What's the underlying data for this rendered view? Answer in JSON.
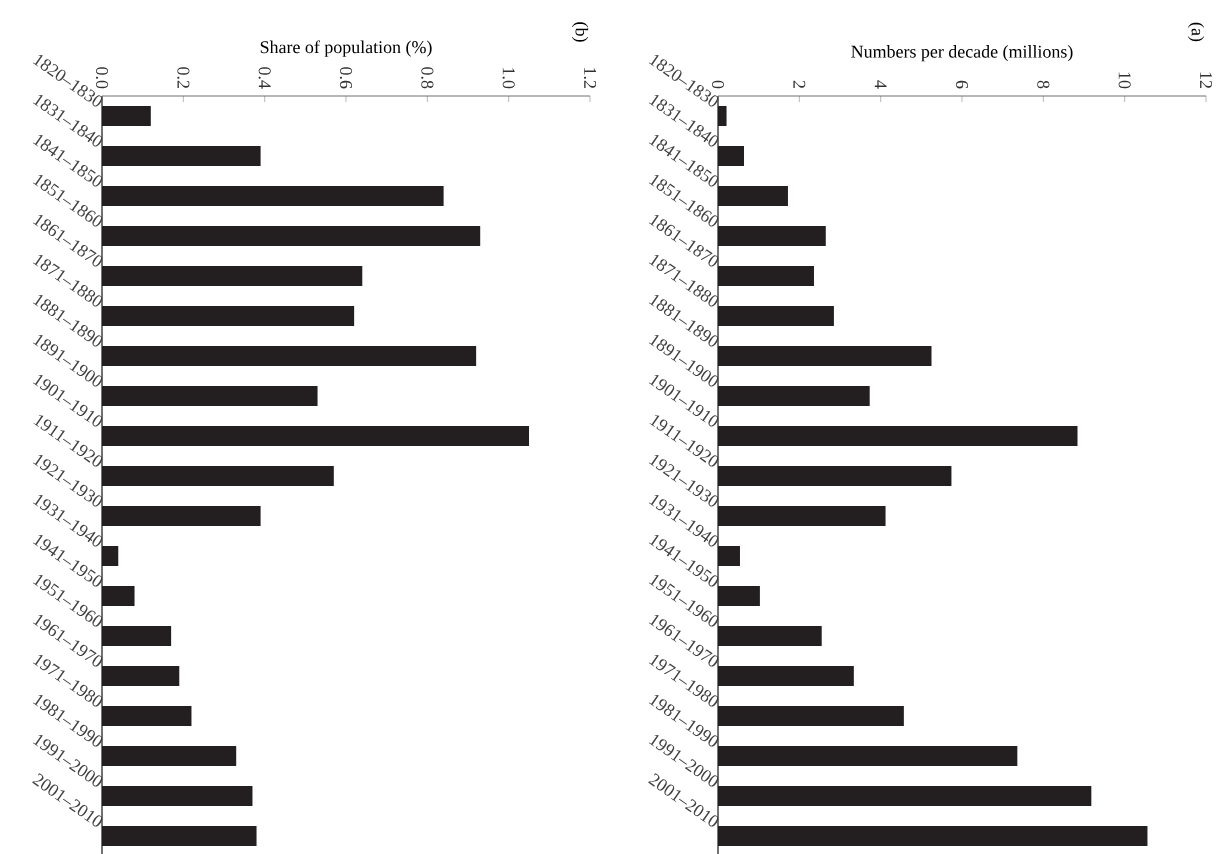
{
  "chart_data": [
    {
      "type": "bar",
      "orientation": "horizontal",
      "xlabel": "Share of population (%)",
      "annotations": [
        "(b)"
      ],
      "categories": [
        "1820–1830",
        "1831–1840",
        "1841–1850",
        "1851–1860",
        "1861–1870",
        "1871–1880",
        "1881–1890",
        "1891–1900",
        "1901–1910",
        "1911–1920",
        "1921–1930",
        "1931–1940",
        "1941–1950",
        "1951–1960",
        "1961–1970",
        "1971–1980",
        "1981–1990",
        "1991–2000",
        "2001–2010"
      ],
      "values": [
        0.12,
        0.39,
        0.84,
        0.93,
        0.64,
        0.62,
        0.92,
        0.53,
        1.05,
        0.57,
        0.39,
        0.04,
        0.08,
        0.17,
        0.19,
        0.22,
        0.33,
        0.37,
        0.38
      ],
      "color": "#231f20",
      "xlim": [
        0,
        1.2
      ],
      "xticks": [
        {
          "value": 0,
          "label": "0.0"
        },
        0.2,
        0.4,
        0.6,
        0.8,
        {
          "value": 1,
          "label": "1.0"
        },
        1.2
      ]
    },
    {
      "type": "bar",
      "orientation": "horizontal",
      "xlabel": "Numbers per decade (millions)",
      "annotations": [
        "(a)"
      ],
      "categories": [
        "1820–1830",
        "1831–1840",
        "1841–1850",
        "1851–1860",
        "1861–1870",
        "1871–1880",
        "1881–1890",
        "1891–1900",
        "1901–1910",
        "1911–1920",
        "1921–1930",
        "1931–1940",
        "1941–1950",
        "1951–1960",
        "1961–1970",
        "1971–1980",
        "1981–1990",
        "1991–2000",
        "2001–2010"
      ],
      "values": [
        0.21,
        0.64,
        1.72,
        2.65,
        2.36,
        2.85,
        5.25,
        3.73,
        8.84,
        5.74,
        4.12,
        0.54,
        1.03,
        2.55,
        3.34,
        4.57,
        7.36,
        9.18,
        10.56
      ],
      "color": "#231f20",
      "xlim": [
        0,
        12
      ],
      "xticks": [
        0,
        2,
        4,
        6,
        8,
        10,
        12
      ]
    }
  ]
}
